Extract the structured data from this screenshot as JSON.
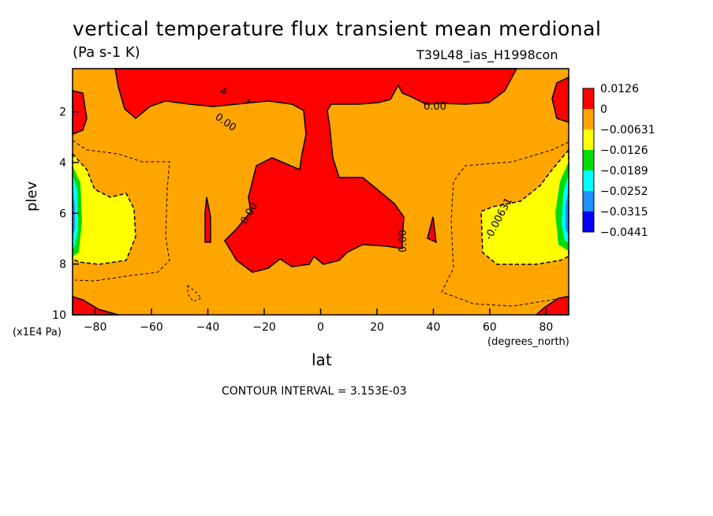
{
  "chart_data": {
    "type": "heatmap",
    "title": "vertical temperature flux transient mean merdional",
    "units": "(Pa s-1 K)",
    "run_label": "T39L48_ias_H1998con",
    "xlabel": "lat",
    "ylabel": "plev",
    "x_unit": "(degrees_north)",
    "y_unit": "(x1E4 Pa)",
    "xlim": [
      -88,
      88
    ],
    "ylim": [
      10,
      0.3
    ],
    "x_ticks": [
      -80,
      -60,
      -40,
      -20,
      0,
      20,
      40,
      60,
      80
    ],
    "y_ticks": [
      2,
      4,
      6,
      8,
      10
    ],
    "contour_interval_text": "CONTOUR INTERVAL = 3.153E-03",
    "legend": [
      {
        "label": "0.0126",
        "color": "#ff0000"
      },
      {
        "label": "0",
        "color": "#ffa500"
      },
      {
        "label": "-0.00631",
        "color": "#ffff00"
      },
      {
        "label": "-0.0126",
        "color": "#00dd00"
      },
      {
        "label": "-0.0189",
        "color": "#00ffff"
      },
      {
        "label": "-0.0252",
        "color": "#1e90ff"
      },
      {
        "label": "-0.0315",
        "color": "#0000ff"
      },
      {
        "label": "-0.0441",
        "color": "#0000ff"
      }
    ],
    "contour_labels": [
      "0.00",
      "0.00",
      "0.00",
      "0.00",
      "-0.00631"
    ],
    "legend_position": "right"
  }
}
